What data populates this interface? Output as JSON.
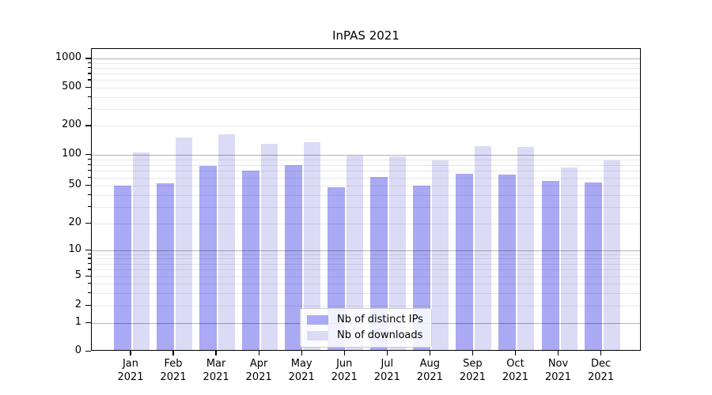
{
  "chart_data": {
    "type": "bar",
    "title": "InPAS 2021",
    "categories": [
      "Jan 2021",
      "Feb 2021",
      "Mar 2021",
      "Apr 2021",
      "May 2021",
      "Jun 2021",
      "Jul 2021",
      "Aug 2021",
      "Sep 2021",
      "Oct 2021",
      "Nov 2021",
      "Dec 2021"
    ],
    "x_tick_line1": [
      "Jan",
      "Feb",
      "Mar",
      "Apr",
      "May",
      "Jun",
      "Jul",
      "Aug",
      "Sep",
      "Oct",
      "Nov",
      "Dec"
    ],
    "x_tick_line2": "2021",
    "series": [
      {
        "name": "Nb of distinct IPs",
        "color": "#a9a9f4",
        "values": [
          48,
          51,
          75,
          68,
          76,
          46,
          59,
          48,
          63,
          62,
          54,
          52
        ]
      },
      {
        "name": "Nb of downloads",
        "color": "#dbdbf6",
        "values": [
          102,
          146,
          156,
          126,
          130,
          95,
          93,
          85,
          119,
          116,
          73,
          85
        ]
      }
    ],
    "yscale": "symlog",
    "ylim": [
      0,
      1265
    ],
    "yticks": [
      0,
      1,
      2,
      5,
      10,
      20,
      50,
      100,
      200,
      500,
      1000
    ],
    "grid": true,
    "legend_position": "lower center"
  },
  "colors": {
    "bar_distinct_ips": "#a9a9f4",
    "bar_downloads": "#dbdbf6",
    "grid_major": "#b3b3b3",
    "grid_minor": "#ebebeb",
    "axis": "#000000",
    "legend_border": "#cccccc",
    "background": "#ffffff"
  }
}
